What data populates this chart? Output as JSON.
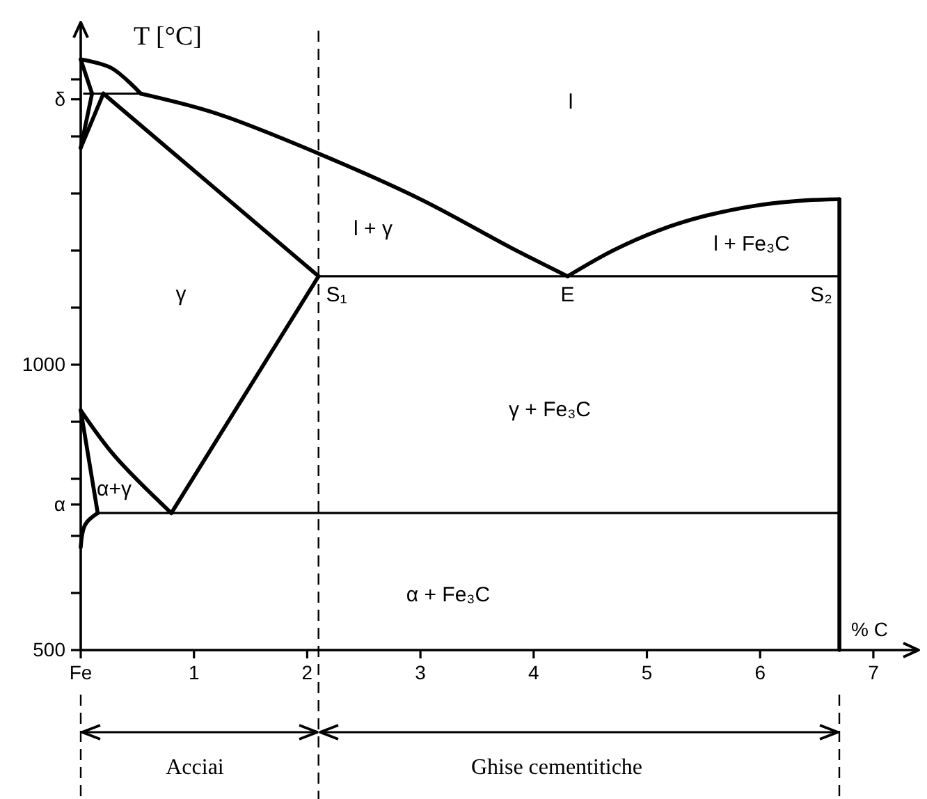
{
  "chart_data": {
    "type": "line",
    "xlabel": "% C",
    "ylabel": "T [°C]",
    "xlim": [
      0,
      7.4
    ],
    "ylim": [
      500,
      1600
    ],
    "xticks": [
      {
        "value": 0,
        "label": "Fe"
      },
      1,
      2,
      3,
      4,
      5,
      6,
      7
    ],
    "yticks": [
      500,
      {
        "value": 600,
        "label": null
      },
      {
        "value": 700,
        "label": null
      },
      {
        "value": 755,
        "label": "α"
      },
      {
        "value": 800,
        "label": null
      },
      {
        "value": 900,
        "label": null
      },
      1000,
      {
        "value": 1100,
        "label": null
      },
      {
        "value": 1200,
        "label": null
      },
      {
        "value": 1300,
        "label": null
      },
      {
        "value": 1400,
        "label": null
      },
      {
        "value": 1465,
        "label": "δ"
      },
      {
        "value": 1500,
        "label": null
      }
    ],
    "series": [
      {
        "color": "#000000",
        "x": [
          0,
          0.27,
          0.53
        ],
        "values": [
          1535,
          1520,
          1475
        ]
      },
      {
        "color": "#000000",
        "x": [
          0.53,
          1.2,
          2.1,
          3.0,
          3.8,
          4.3
        ],
        "values": [
          1475,
          1440,
          1370,
          1290,
          1205,
          1155
        ]
      },
      {
        "color": "#000000",
        "x": [
          0.03,
          0.53
        ],
        "values": [
          1475,
          1475
        ]
      },
      {
        "color": "#000000",
        "x": [
          0,
          0.1
        ],
        "values": [
          1535,
          1475
        ]
      },
      {
        "color": "#000000",
        "x": [
          0,
          0.1
        ],
        "values": [
          1380,
          1475
        ]
      },
      {
        "color": "#000000",
        "x": [
          0,
          0.2
        ],
        "values": [
          1380,
          1475
        ]
      },
      {
        "color": "#000000",
        "x": [
          0.2,
          2.1
        ],
        "values": [
          1475,
          1155
        ]
      },
      {
        "color": "#000000",
        "x": [
          0,
          0.3,
          0.8
        ],
        "values": [
          920,
          840,
          740
        ]
      },
      {
        "color": "#000000",
        "x": [
          0.8,
          2.1
        ],
        "values": [
          740,
          1155
        ]
      },
      {
        "color": "#000000",
        "x": [
          0,
          0.15
        ],
        "values": [
          920,
          740
        ]
      },
      {
        "color": "#000000",
        "x": [
          0.15,
          0.04,
          0
        ],
        "values": [
          740,
          720,
          680
        ]
      },
      {
        "color": "#000000",
        "x": [
          0.15,
          6.7
        ],
        "values": [
          740,
          740
        ]
      },
      {
        "color": "#000000",
        "x": [
          2.1,
          6.7
        ],
        "values": [
          1155,
          1155
        ]
      },
      {
        "color": "#000000",
        "x": [
          4.3,
          4.7,
          5.1,
          5.5,
          6.0,
          6.4,
          6.7
        ],
        "values": [
          1155,
          1200,
          1235,
          1260,
          1280,
          1288,
          1290
        ]
      },
      {
        "color": "#000000",
        "x": [
          6.7,
          6.7
        ],
        "values": [
          500,
          1290
        ]
      }
    ],
    "ref_lines": [
      {
        "axis": "x",
        "value": 2.1,
        "line_style": "dashed"
      }
    ],
    "annotations": [
      "l",
      "l + γ",
      "γ",
      {
        "text": "S₁",
        "x": 2.1,
        "y": 1155
      },
      {
        "text": "E",
        "x": 4.3,
        "y": 1155
      },
      {
        "text": "S₂",
        "x": 6.7,
        "y": 1155
      },
      "l + Fe₃C",
      "γ + Fe₃C",
      "α+γ",
      "α + Fe₃C",
      "Acciai",
      "Ghise cementitiche"
    ]
  }
}
